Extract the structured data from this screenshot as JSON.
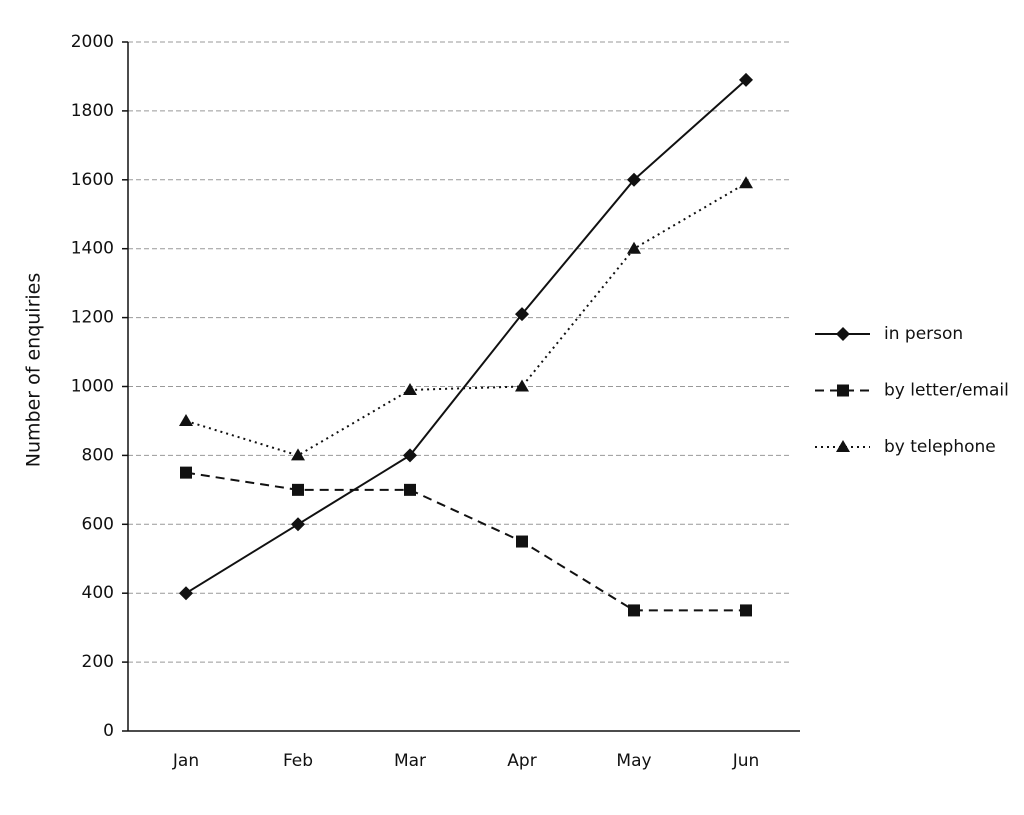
{
  "chart_data": {
    "type": "line",
    "y_label": "Number of enquiries",
    "categories": [
      "Jan",
      "Feb",
      "Mar",
      "Apr",
      "May",
      "Jun"
    ],
    "series": [
      {
        "name": "in person",
        "color": "#111111",
        "dash": "solid",
        "marker": "diamond",
        "values": [
          400,
          600,
          800,
          1210,
          1600,
          1890
        ]
      },
      {
        "name": "by letter/email",
        "color": "#111111",
        "dash": "dashed",
        "marker": "square",
        "values": [
          750,
          700,
          700,
          550,
          350,
          350
        ]
      },
      {
        "name": "by telephone",
        "color": "#111111",
        "dash": "dotted",
        "marker": "triangle",
        "values": [
          900,
          800,
          990,
          1000,
          1400,
          1590
        ]
      }
    ],
    "ylim": [
      0,
      2000
    ],
    "yticks": [
      0,
      200,
      400,
      600,
      800,
      1000,
      1200,
      1400,
      1600,
      1800,
      2000
    ],
    "grid": true,
    "legend": "right"
  }
}
